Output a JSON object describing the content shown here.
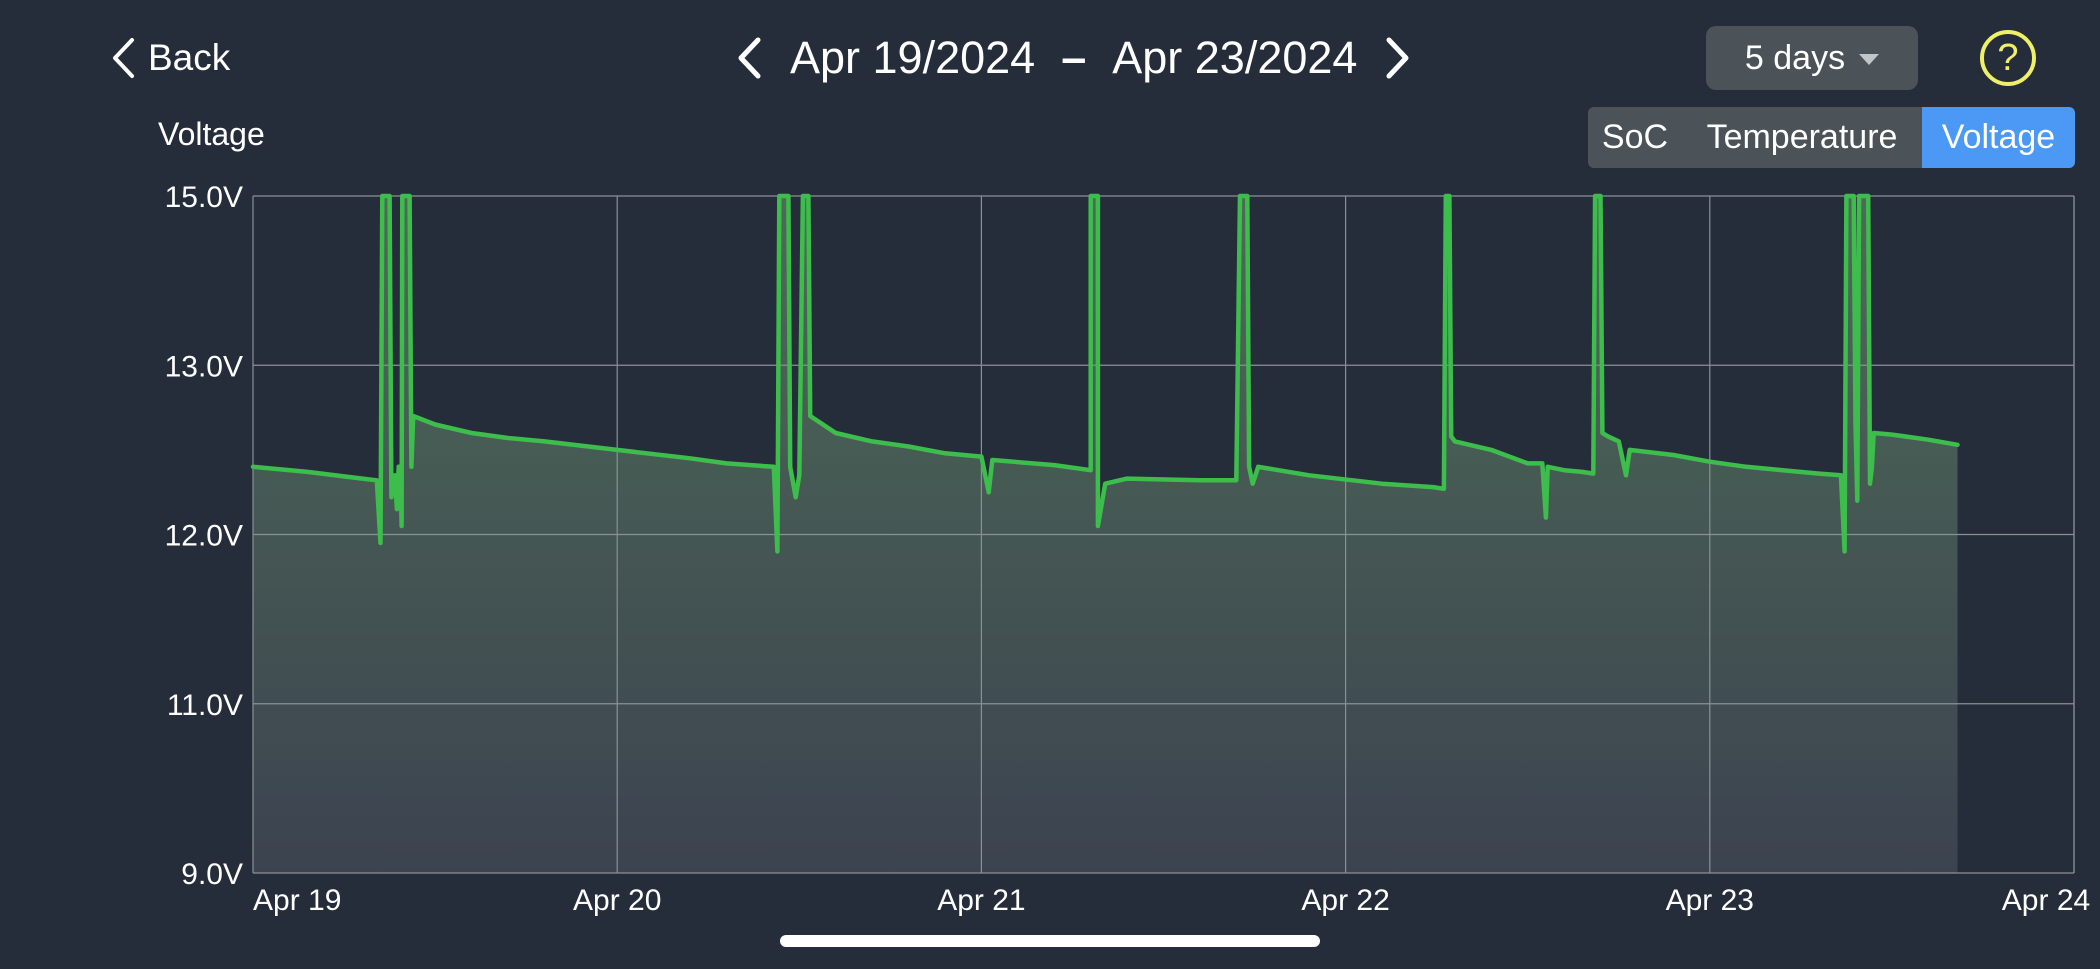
{
  "nav": {
    "back_label": "Back",
    "start_date": "Apr 19/2024",
    "separator": "–",
    "end_date": "Apr 23/2024"
  },
  "range_select": {
    "value": "5 days"
  },
  "help": {
    "label": "?"
  },
  "metric_tabs": [
    {
      "label": "SoC",
      "selected": false
    },
    {
      "label": "Temperature",
      "selected": false
    },
    {
      "label": "Voltage",
      "selected": true
    }
  ],
  "colors": {
    "background": "#262d3a",
    "line": "#3dbd4c",
    "selected_tab": "#4c98f5",
    "help_icon": "#eef067"
  },
  "chart_data": {
    "type": "area",
    "title": "Voltage",
    "xlabel": "",
    "ylabel": "",
    "y_ticks": [
      {
        "value": 9.0,
        "label": "9.0V"
      },
      {
        "value": 11.0,
        "label": "11.0V"
      },
      {
        "value": 12.0,
        "label": "12.0V"
      },
      {
        "value": 13.0,
        "label": "13.0V"
      },
      {
        "value": 15.0,
        "label": "15.0V"
      }
    ],
    "x_ticks": [
      {
        "value": 0,
        "label": "Apr 19"
      },
      {
        "value": 1,
        "label": "Apr 20"
      },
      {
        "value": 2,
        "label": "Apr 21"
      },
      {
        "value": 3,
        "label": "Apr 22"
      },
      {
        "value": 4,
        "label": "Apr 23"
      },
      {
        "value": 5,
        "label": "Apr 24"
      }
    ],
    "xlim": [
      0,
      5
    ],
    "ylim": [
      9.0,
      15.0
    ],
    "y_scale": "piecewise",
    "grid": true,
    "series": [
      {
        "color": "#3dbd4c",
        "points": [
          [
            0.0,
            12.4
          ],
          [
            0.15,
            12.37
          ],
          [
            0.3,
            12.33
          ],
          [
            0.34,
            12.32
          ],
          [
            0.35,
            11.95
          ],
          [
            0.355,
            15.0
          ],
          [
            0.375,
            15.0
          ],
          [
            0.38,
            12.22
          ],
          [
            0.39,
            12.35
          ],
          [
            0.395,
            12.15
          ],
          [
            0.4,
            12.4
          ],
          [
            0.405,
            12.4
          ],
          [
            0.408,
            12.05
          ],
          [
            0.41,
            15.0
          ],
          [
            0.43,
            15.0
          ],
          [
            0.435,
            12.4
          ],
          [
            0.44,
            12.7
          ],
          [
            0.5,
            12.65
          ],
          [
            0.6,
            12.6
          ],
          [
            0.7,
            12.57
          ],
          [
            0.8,
            12.55
          ],
          [
            1.0,
            12.5
          ],
          [
            1.2,
            12.45
          ],
          [
            1.3,
            12.42
          ],
          [
            1.43,
            12.4
          ],
          [
            1.44,
            11.9
          ],
          [
            1.445,
            15.0
          ],
          [
            1.47,
            15.0
          ],
          [
            1.475,
            12.4
          ],
          [
            1.49,
            12.22
          ],
          [
            1.5,
            12.35
          ],
          [
            1.51,
            15.0
          ],
          [
            1.525,
            15.0
          ],
          [
            1.53,
            12.7
          ],
          [
            1.6,
            12.6
          ],
          [
            1.7,
            12.55
          ],
          [
            1.8,
            12.52
          ],
          [
            1.9,
            12.48
          ],
          [
            2.0,
            12.46
          ],
          [
            2.02,
            12.25
          ],
          [
            2.03,
            12.44
          ],
          [
            2.2,
            12.41
          ],
          [
            2.3,
            12.38
          ],
          [
            2.3,
            15.0
          ],
          [
            2.32,
            15.0
          ],
          [
            2.32,
            12.05
          ],
          [
            2.34,
            12.3
          ],
          [
            2.4,
            12.33
          ],
          [
            2.6,
            12.32
          ],
          [
            2.7,
            12.32
          ],
          [
            2.71,
            15.0
          ],
          [
            2.73,
            15.0
          ],
          [
            2.735,
            12.4
          ],
          [
            2.745,
            12.3
          ],
          [
            2.76,
            12.4
          ],
          [
            2.9,
            12.35
          ],
          [
            3.1,
            12.3
          ],
          [
            3.24,
            12.28
          ],
          [
            3.27,
            12.27
          ],
          [
            3.275,
            15.0
          ],
          [
            3.285,
            15.0
          ],
          [
            3.29,
            12.58
          ],
          [
            3.3,
            12.55
          ],
          [
            3.4,
            12.5
          ],
          [
            3.5,
            12.42
          ],
          [
            3.54,
            12.42
          ],
          [
            3.55,
            12.1
          ],
          [
            3.555,
            12.4
          ],
          [
            3.6,
            12.38
          ],
          [
            3.65,
            12.37
          ],
          [
            3.68,
            12.36
          ],
          [
            3.685,
            15.0
          ],
          [
            3.7,
            15.0
          ],
          [
            3.705,
            12.6
          ],
          [
            3.72,
            12.58
          ],
          [
            3.75,
            12.55
          ],
          [
            3.77,
            12.35
          ],
          [
            3.78,
            12.5
          ],
          [
            3.9,
            12.47
          ],
          [
            4.0,
            12.43
          ],
          [
            4.1,
            12.4
          ],
          [
            4.2,
            12.38
          ],
          [
            4.3,
            12.36
          ],
          [
            4.36,
            12.35
          ],
          [
            4.37,
            11.9
          ],
          [
            4.375,
            15.0
          ],
          [
            4.395,
            15.0
          ],
          [
            4.4,
            12.65
          ],
          [
            4.405,
            12.2
          ],
          [
            4.41,
            15.0
          ],
          [
            4.435,
            15.0
          ],
          [
            4.44,
            12.3
          ],
          [
            4.445,
            12.4
          ],
          [
            4.45,
            12.6
          ],
          [
            4.5,
            12.59
          ],
          [
            4.6,
            12.56
          ],
          [
            4.68,
            12.53
          ]
        ]
      }
    ]
  }
}
